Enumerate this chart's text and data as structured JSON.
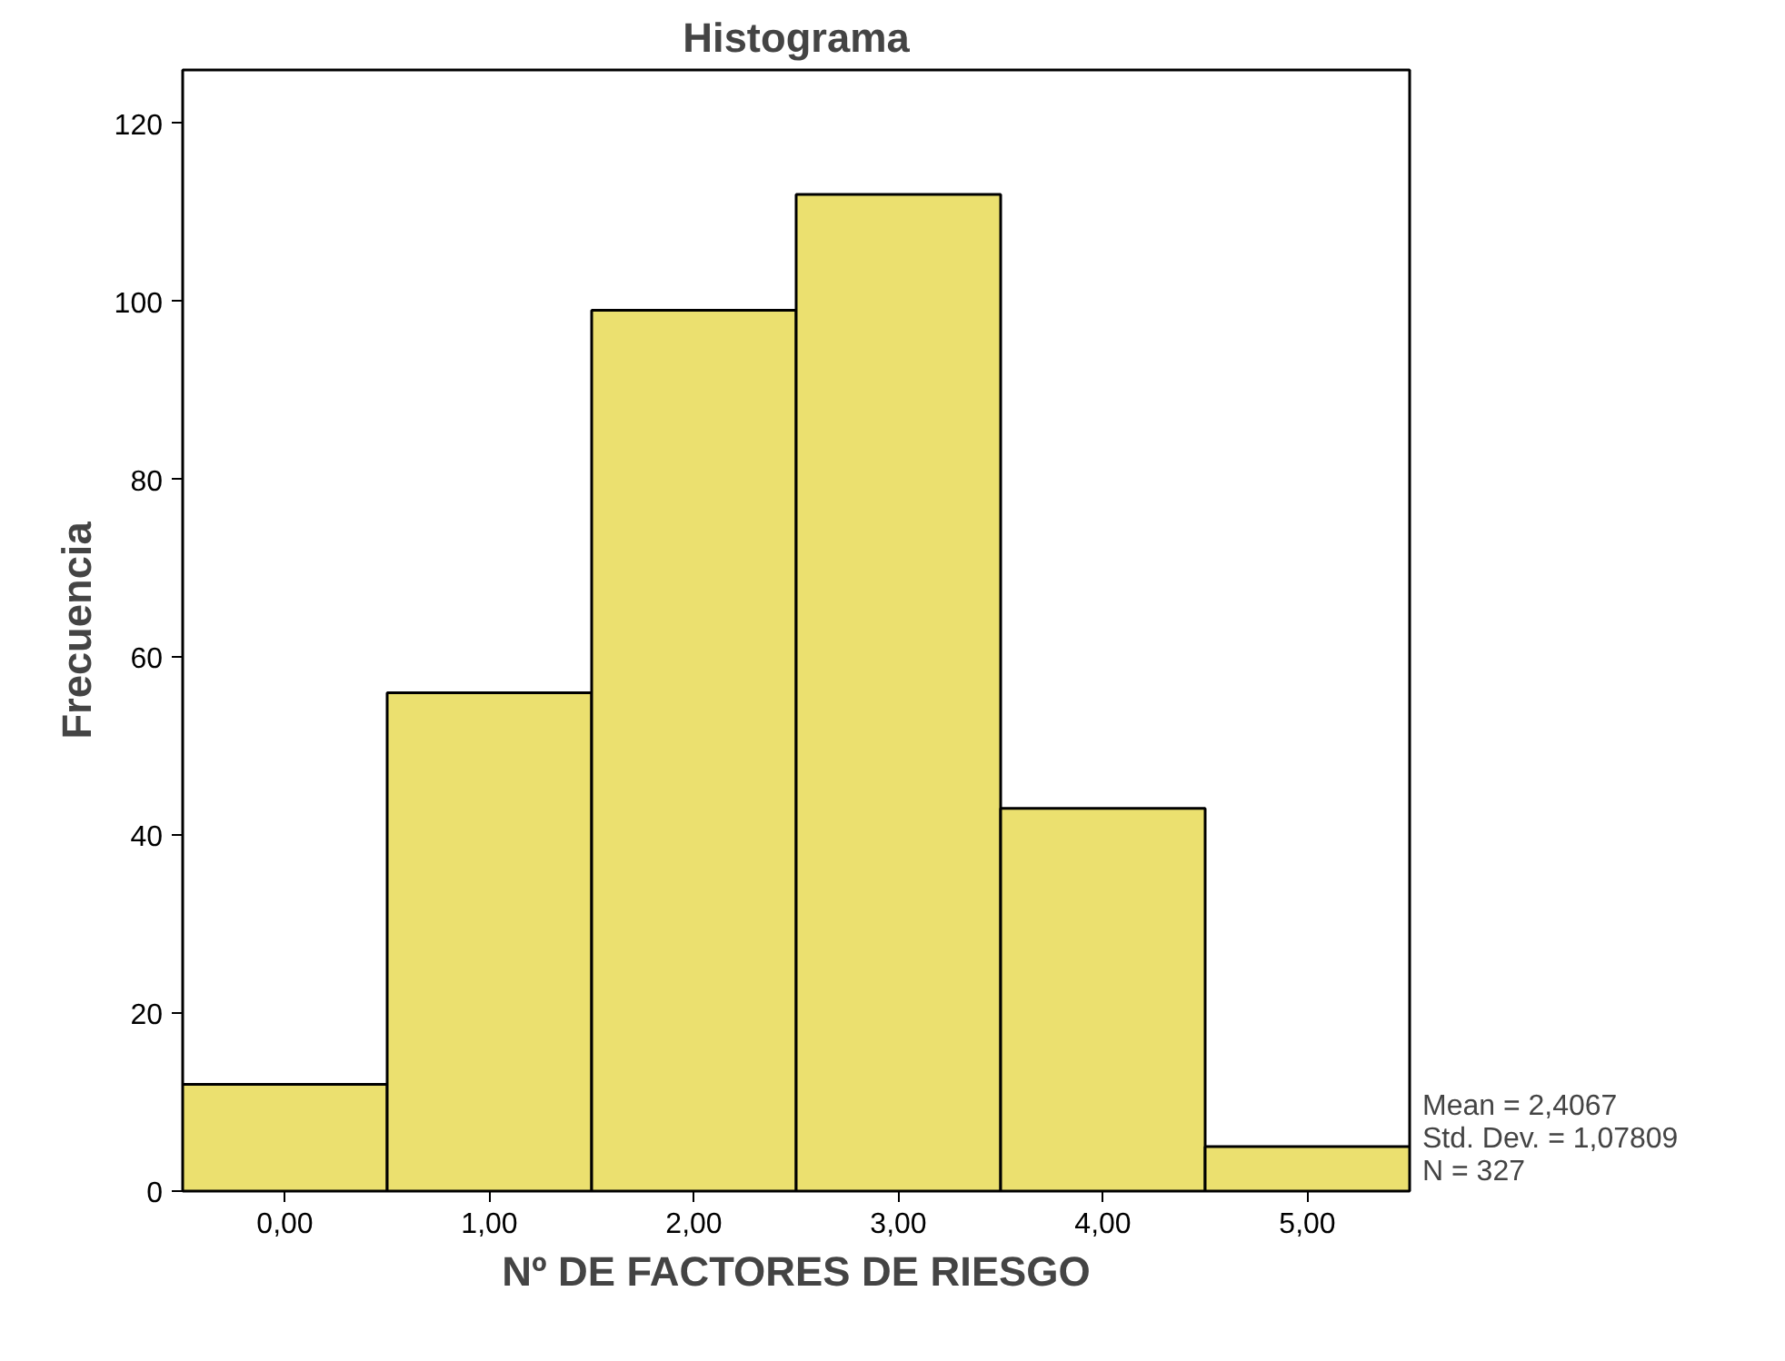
{
  "chart_data": {
    "type": "histogram",
    "title": "Histograma",
    "xlabel": "Nº DE FACTORES DE RIESGO",
    "ylabel": "Frecuencia",
    "bins": [
      -0.5,
      0.5,
      1.5,
      2.5,
      3.5,
      4.5,
      5.5
    ],
    "values": [
      12,
      56,
      99,
      112,
      43,
      5
    ],
    "color": "#ebe06f",
    "xlim": [
      -0.5,
      5.5
    ],
    "xticks": [
      {
        "value": 0,
        "label": "0,00"
      },
      {
        "value": 1,
        "label": "1,00"
      },
      {
        "value": 2,
        "label": "2,00"
      },
      {
        "value": 3,
        "label": "3,00"
      },
      {
        "value": 4,
        "label": "4,00"
      },
      {
        "value": 5,
        "label": "5,00"
      }
    ],
    "ylim": [
      0,
      126
    ],
    "yticks": [
      0,
      20,
      40,
      60,
      80,
      100,
      120
    ],
    "grid": false,
    "annotations": [
      "Mean = 2,4067",
      "Std. Dev. = 1,07809",
      "N = 327"
    ]
  }
}
